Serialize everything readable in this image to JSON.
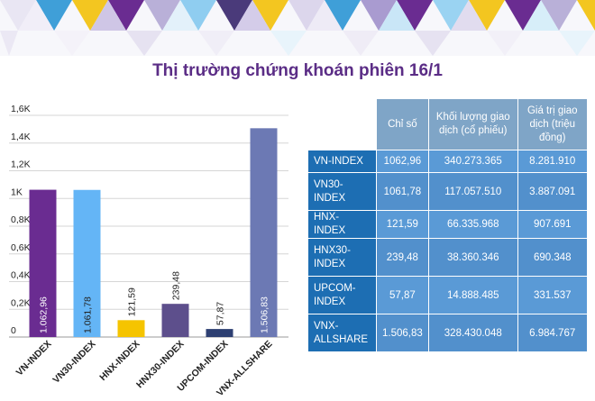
{
  "title": "Thị trường chứng khoán phiên 16/1",
  "colors": {
    "title": "#5b2d86",
    "table_header": "#7fa5c7",
    "table_label": "#1d6eb3",
    "table_cell": "#5a9ad6"
  },
  "chart_data": {
    "type": "bar",
    "ylim": [
      0,
      1600
    ],
    "yticks": [
      0,
      200,
      400,
      600,
      800,
      1000,
      1200,
      1400,
      1600
    ],
    "ytick_labels": [
      "0",
      "0,2K",
      "0,4K",
      "0,6K",
      "0,8K",
      "1K",
      "1,2K",
      "1,4K",
      "1,6K"
    ],
    "categories": [
      "VN-INDEX",
      "VN30-INDEX",
      "HNX-INDEX",
      "HNX30-INDEX",
      "UPCOM-INDEX",
      "VNX-ALLSHARE"
    ],
    "values": [
      1062.96,
      1061.78,
      121.59,
      239.48,
      57.87,
      1506.83
    ],
    "data_labels": [
      "1.062,96",
      "1.061,78",
      "121,59",
      "239,48",
      "57,87",
      "1.506,83"
    ],
    "colors": [
      "#6a2c91",
      "#64b5f6",
      "#f5c400",
      "#5d4f8c",
      "#2d3f72",
      "#6c79b4"
    ]
  },
  "table": {
    "headers": [
      "Chỉ số",
      "Khối lượng giao dịch (cổ phiếu)",
      "Giá trị giao dịch (triệu đồng)"
    ],
    "rows": [
      {
        "label": "VN-INDEX",
        "index": "1062,96",
        "volume": "340.273.365",
        "value": "8.281.910"
      },
      {
        "label": "VN30-INDEX",
        "index": "1061,78",
        "volume": "117.057.510",
        "value": "3.887.091"
      },
      {
        "label": "HNX-INDEX",
        "index": "121,59",
        "volume": "66.335.968",
        "value": "907.691"
      },
      {
        "label": "HNX30-INDEX",
        "index": "239,48",
        "volume": "38.360.346",
        "value": "690.348"
      },
      {
        "label": "UPCOM-INDEX",
        "index": "57,87",
        "volume": "14.888.485",
        "value": "331.537"
      },
      {
        "label": "VNX-ALLSHARE",
        "index": "1.506,83",
        "volume": "328.430.048",
        "value": "6.984.767"
      }
    ]
  }
}
